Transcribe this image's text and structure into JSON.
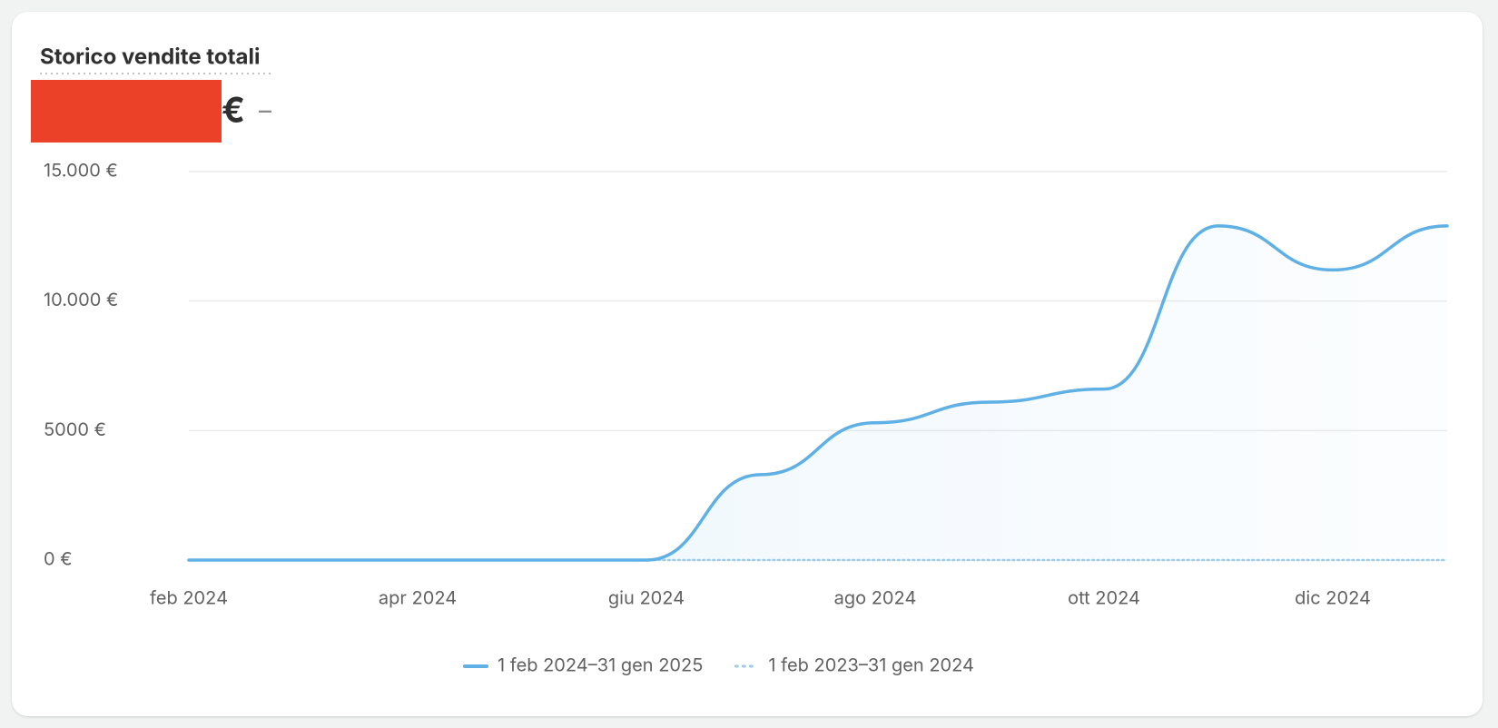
{
  "chart_data": {
    "type": "line",
    "title": "Storico vendite totali",
    "total": "€",
    "change": "–",
    "categories": [
      "feb 2024",
      null,
      "apr 2024",
      null,
      "giu 2024",
      null,
      "ago 2024",
      null,
      "ott 2024",
      null,
      "dic 2024",
      null
    ],
    "series": [
      {
        "name": "1 feb 2024–31 gen 2025",
        "color": "#5eb0e5",
        "style": "solid",
        "values": [
          0,
          0,
          0,
          0,
          0,
          3300,
          5300,
          6100,
          6600,
          12900,
          11200,
          12900
        ]
      },
      {
        "name": "1 feb 2023–31 gen 2024",
        "color": "#9bcdeb",
        "style": "dotted",
        "values": [
          0,
          0,
          0,
          0,
          0,
          0,
          0,
          0,
          0,
          0,
          0,
          0
        ]
      }
    ],
    "ylim": [
      0,
      15000
    ],
    "yticks": [
      {
        "value": 0,
        "label": "0 €"
      },
      {
        "value": 5000,
        "label": "5000 €"
      },
      {
        "value": 10000,
        "label": "10.000 €"
      },
      {
        "value": 15000,
        "label": "15.000 €"
      }
    ],
    "grid": true
  }
}
